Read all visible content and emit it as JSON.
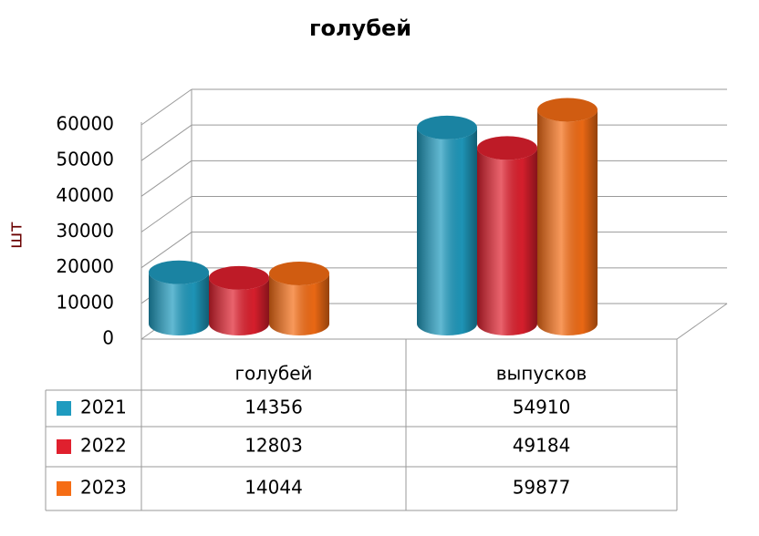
{
  "chart_data": {
    "type": "bar3d",
    "title": "голубей",
    "y_label": "шт",
    "categories": [
      "голубей",
      "выпусков"
    ],
    "series": [
      {
        "name": "2021",
        "color": "#1f9bbf",
        "values": [
          14356,
          54910
        ]
      },
      {
        "name": "2022",
        "color": "#e0202e",
        "values": [
          12803,
          49184
        ]
      },
      {
        "name": "2023",
        "color": "#f56d15",
        "values": [
          14044,
          59877
        ]
      }
    ],
    "ylim": [
      0,
      60000
    ],
    "yticks": [
      0,
      10000,
      20000,
      30000,
      40000,
      50000,
      60000
    ],
    "grid": true,
    "data_table": true
  }
}
